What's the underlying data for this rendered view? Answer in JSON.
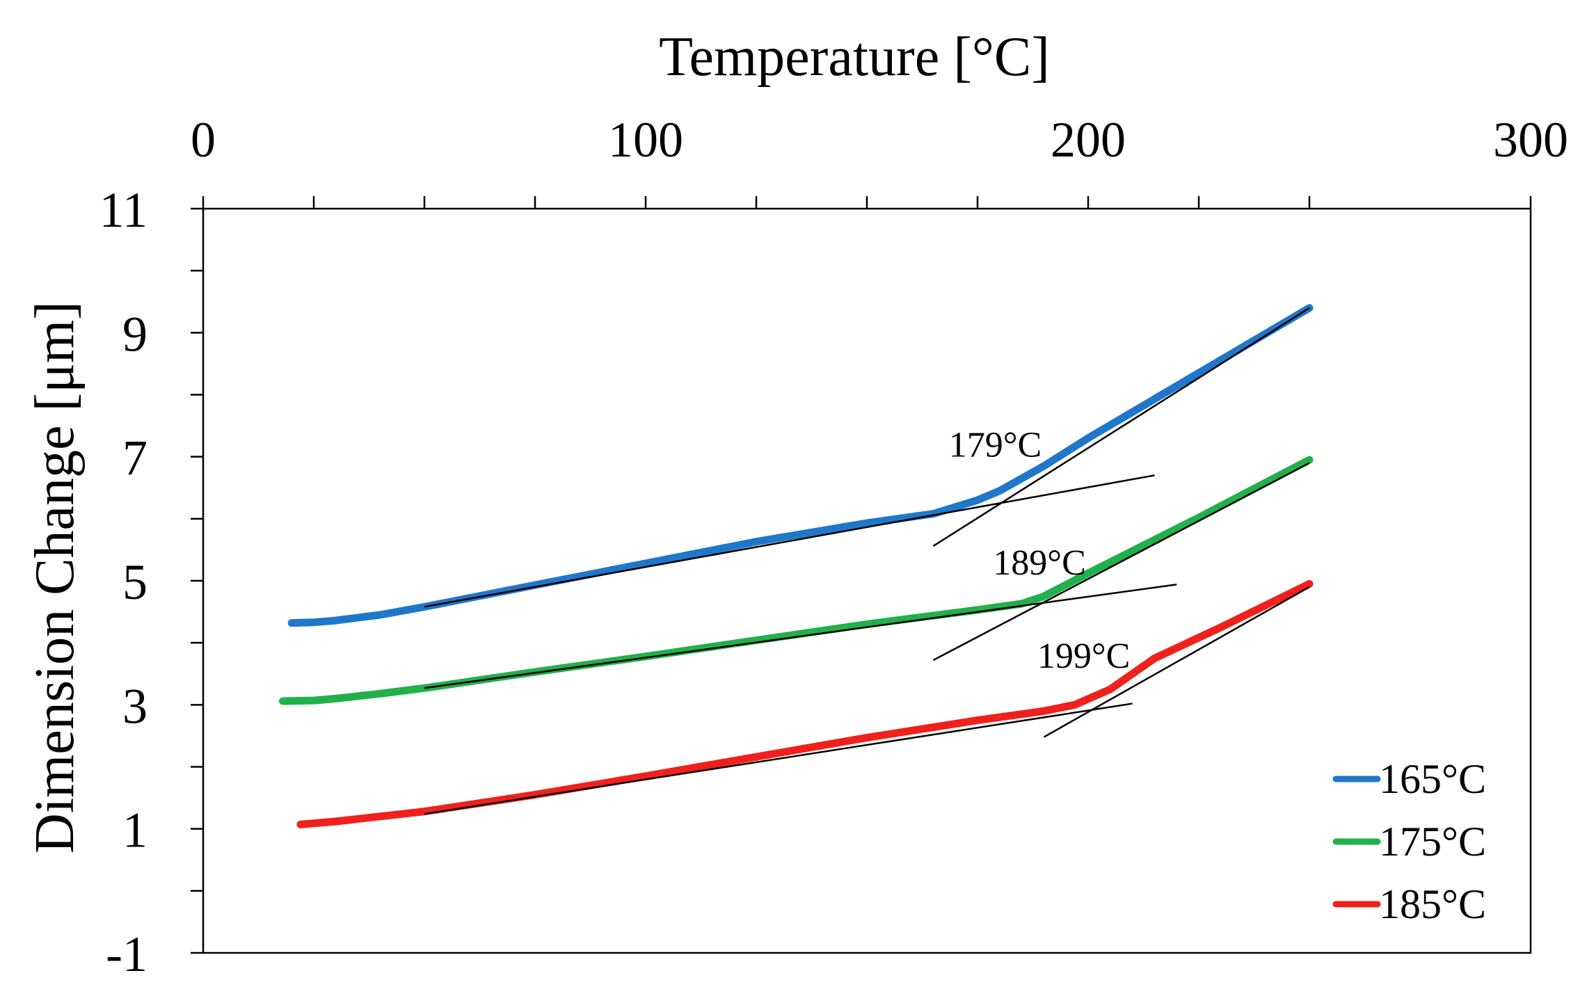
{
  "chart_data": {
    "type": "line",
    "title": "",
    "xlabel": "Temperature [°C]",
    "ylabel": "Dimension Change  [μm]",
    "xlim": [
      0,
      300
    ],
    "ylim": [
      -1,
      11
    ],
    "x_ticks": [
      0,
      100,
      200,
      300
    ],
    "x_tick_labels": [
      "0",
      "100",
      "200",
      "300"
    ],
    "y_ticks": [
      -1,
      1,
      3,
      5,
      7,
      9,
      11
    ],
    "y_tick_labels": [
      "-1",
      "1",
      "3",
      "5",
      "7",
      "9",
      "11"
    ],
    "x_minor_step": 25,
    "y_minor_step": 1,
    "x_axis_position": "top",
    "grid": false,
    "legend_position": "bottom-right",
    "series": [
      {
        "name": "165°C",
        "color": "#1f77c9",
        "points": [
          [
            20,
            4.32
          ],
          [
            25,
            4.33
          ],
          [
            30,
            4.36
          ],
          [
            40,
            4.45
          ],
          [
            50,
            4.58
          ],
          [
            75,
            4.93
          ],
          [
            100,
            5.28
          ],
          [
            125,
            5.63
          ],
          [
            150,
            5.93
          ],
          [
            165,
            6.08
          ],
          [
            175,
            6.3
          ],
          [
            180,
            6.45
          ],
          [
            190,
            6.85
          ],
          [
            200,
            7.3
          ],
          [
            225,
            8.35
          ],
          [
            250,
            9.4
          ]
        ]
      },
      {
        "name": "175°C",
        "color": "#22b04b",
        "points": [
          [
            18,
            3.06
          ],
          [
            25,
            3.07
          ],
          [
            30,
            3.1
          ],
          [
            40,
            3.18
          ],
          [
            50,
            3.27
          ],
          [
            75,
            3.53
          ],
          [
            100,
            3.78
          ],
          [
            125,
            4.04
          ],
          [
            150,
            4.3
          ],
          [
            175,
            4.53
          ],
          [
            185,
            4.63
          ],
          [
            190,
            4.75
          ],
          [
            200,
            5.12
          ],
          [
            225,
            6.02
          ],
          [
            250,
            6.95
          ]
        ]
      },
      {
        "name": "185°C",
        "color": "#f0201c",
        "points": [
          [
            22,
            1.07
          ],
          [
            30,
            1.12
          ],
          [
            40,
            1.2
          ],
          [
            50,
            1.28
          ],
          [
            75,
            1.55
          ],
          [
            100,
            1.85
          ],
          [
            125,
            2.16
          ],
          [
            150,
            2.47
          ],
          [
            175,
            2.75
          ],
          [
            190,
            2.9
          ],
          [
            197,
            3.0
          ],
          [
            205,
            3.25
          ],
          [
            215,
            3.75
          ],
          [
            230,
            4.25
          ],
          [
            250,
            4.95
          ]
        ]
      }
    ],
    "tangent_lines": [
      {
        "x1": 50,
        "y1": 4.58,
        "x2": 215,
        "y2": 6.7
      },
      {
        "x1": 165,
        "y1": 5.56,
        "x2": 250,
        "y2": 9.4
      },
      {
        "x1": 50,
        "y1": 3.27,
        "x2": 220,
        "y2": 4.94
      },
      {
        "x1": 165,
        "y1": 3.72,
        "x2": 250,
        "y2": 6.9
      },
      {
        "x1": 50,
        "y1": 1.24,
        "x2": 210,
        "y2": 3.02
      },
      {
        "x1": 190,
        "y1": 2.48,
        "x2": 250,
        "y2": 4.9
      }
    ],
    "annotations": [
      {
        "text": "179°C",
        "x": 179,
        "y": 7.0
      },
      {
        "text": "189°C",
        "x": 189,
        "y": 5.1
      },
      {
        "text": "199°C",
        "x": 199,
        "y": 3.6
      }
    ]
  }
}
